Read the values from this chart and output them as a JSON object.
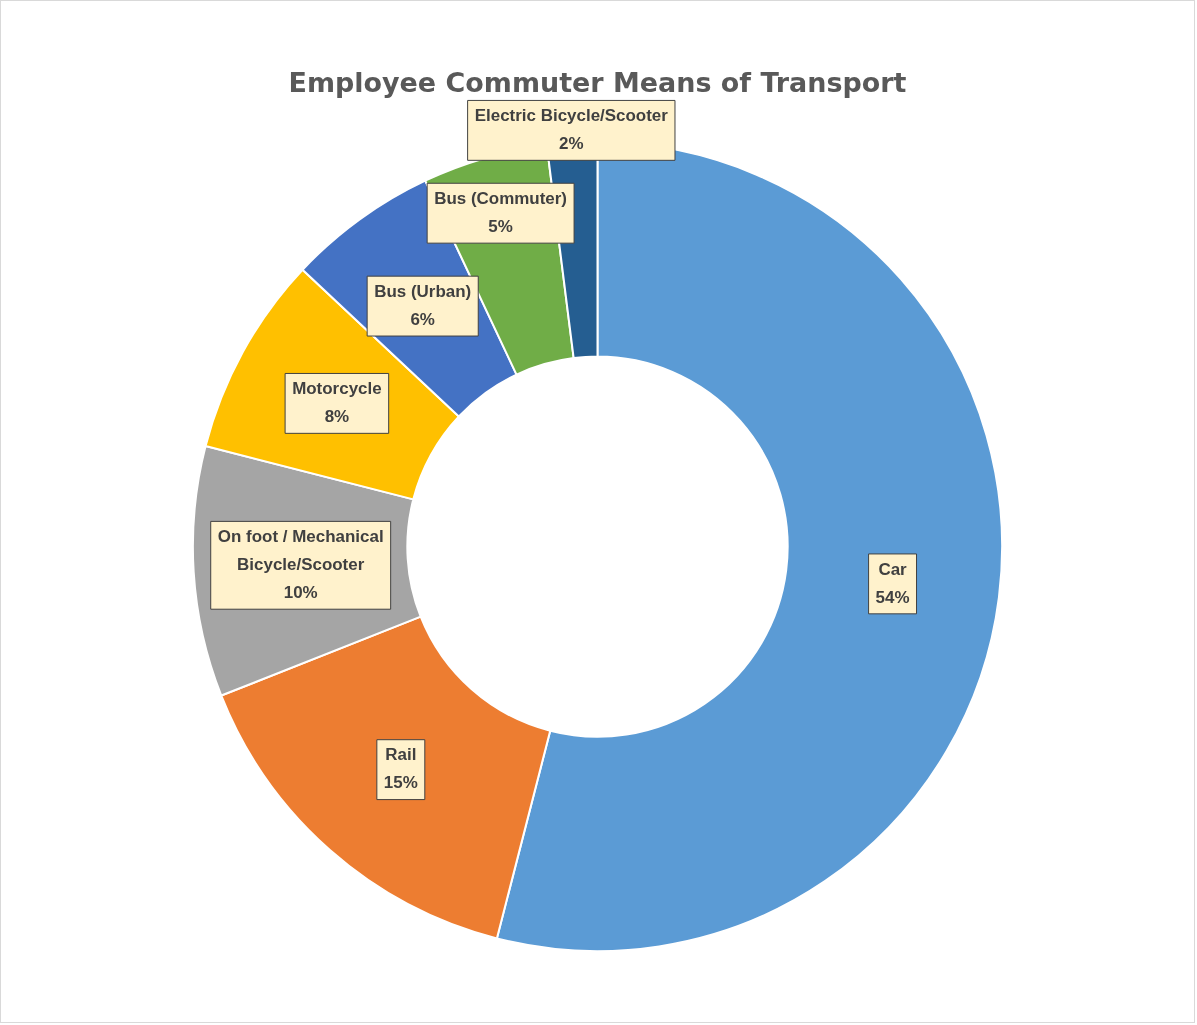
{
  "chart_data": {
    "type": "donut",
    "title": "Employee Commuter Means of Transport",
    "categories": [
      "Car",
      "Rail",
      "On foot / Mechanical Bicycle/Scooter",
      "Motorcycle",
      "Bus (Urban)",
      "Bus (Commuter)",
      "Electric Bicycle/Scooter"
    ],
    "values": [
      54,
      15,
      10,
      8,
      6,
      5,
      2
    ],
    "colors": [
      "#5b9bd5",
      "#ed7d31",
      "#a5a5a5",
      "#ffc000",
      "#4472c4",
      "#70ad47",
      "#255e91"
    ],
    "value_labels": [
      "54%",
      "15%",
      "10%",
      "8%",
      "6%",
      "5%",
      "2%"
    ]
  }
}
